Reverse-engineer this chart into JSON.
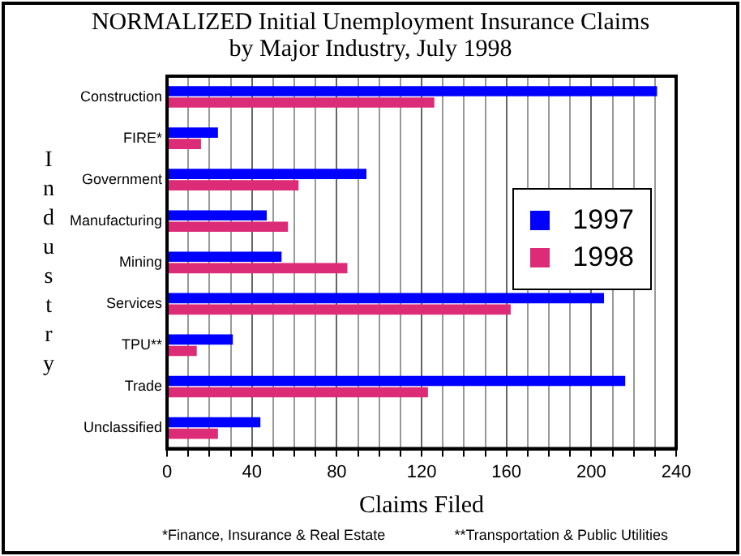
{
  "chart_data": {
    "type": "bar",
    "orientation": "horizontal",
    "title": "NORMALIZED Initial Unemployment Insurance Claims\nby Major Industry, July 1998",
    "xlabel": "Claims Filed",
    "ylabel": "Industry",
    "categories": [
      "Construction",
      "FIRE*",
      "Government",
      "Manufacturing",
      "Mining",
      "Services",
      "TPU**",
      "Trade",
      "Unclassified"
    ],
    "series": [
      {
        "name": "1997",
        "color": "#0000ff",
        "values": [
          231,
          24,
          94,
          47,
          54,
          206,
          31,
          216,
          44
        ]
      },
      {
        "name": "1998",
        "color": "#dd2c77",
        "values": [
          126,
          16,
          62,
          57,
          85,
          162,
          14,
          123,
          24
        ]
      }
    ],
    "xlim": [
      0,
      240
    ],
    "xticks": [
      0,
      {
        "value": 10,
        "label": null
      },
      {
        "value": 20,
        "label": null
      },
      {
        "value": 30,
        "label": null
      },
      40,
      {
        "value": 50,
        "label": null
      },
      {
        "value": 60,
        "label": null
      },
      {
        "value": 70,
        "label": null
      },
      80,
      {
        "value": 90,
        "label": null
      },
      {
        "value": 100,
        "label": null
      },
      {
        "value": 110,
        "label": null
      },
      120,
      {
        "value": 130,
        "label": null
      },
      {
        "value": 140,
        "label": null
      },
      {
        "value": 150,
        "label": null
      },
      160,
      {
        "value": 170,
        "label": null
      },
      {
        "value": 180,
        "label": null
      },
      {
        "value": 190,
        "label": null
      },
      200,
      {
        "value": 210,
        "label": null
      },
      {
        "value": 220,
        "label": null
      },
      {
        "value": 230,
        "label": null
      },
      240
    ],
    "grid": "x",
    "legend": "right",
    "annotations": [
      "*Finance, Insurance & Real Estate",
      "**Transportation & Public Utilities"
    ]
  }
}
